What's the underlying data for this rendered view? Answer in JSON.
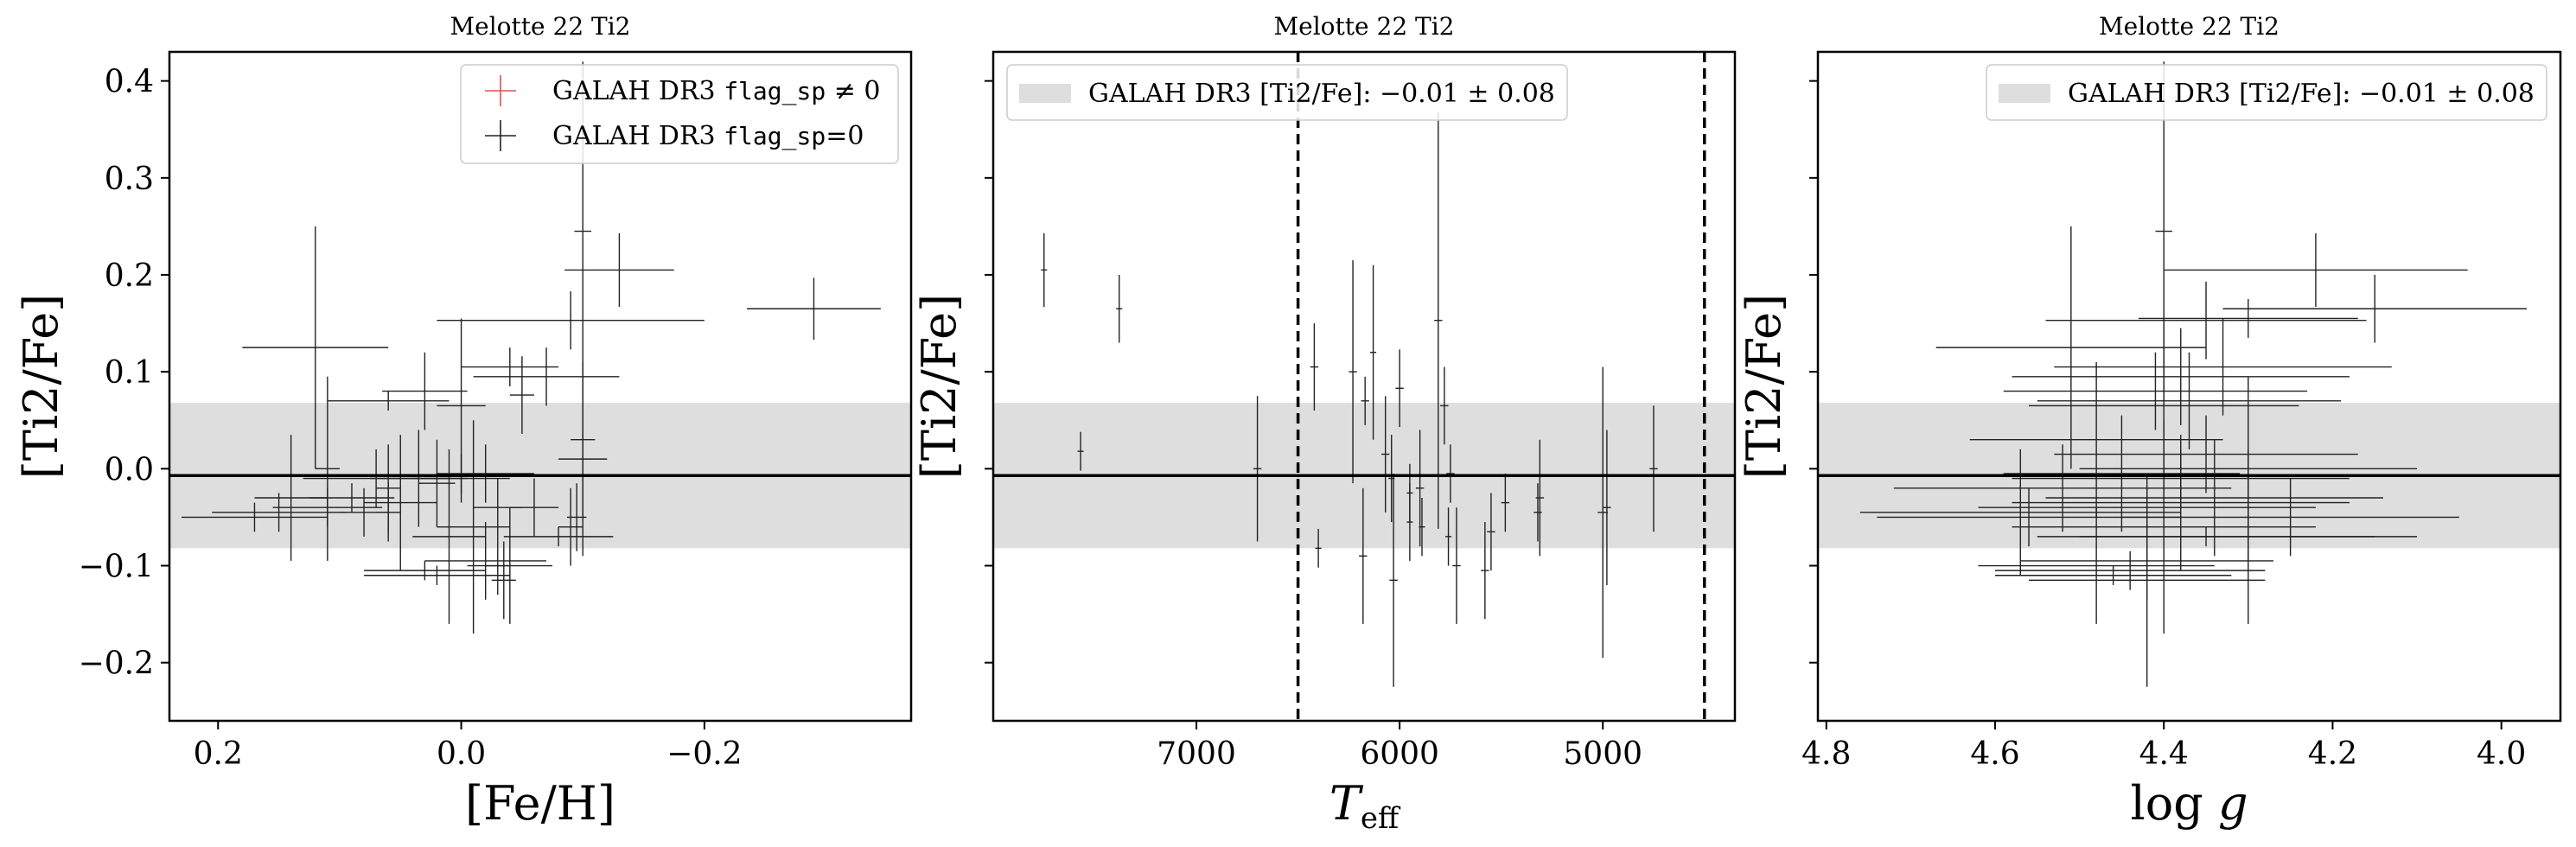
{
  "colors": {
    "band": "#dedede",
    "errorbar": "#222222",
    "flagged": "#e05050",
    "axis": "#000000"
  },
  "legend_text": {
    "flagged_prefix": "GALAH DR3 ",
    "flag_code": "flag_sp",
    "flagged_suffix": " ≠ 0",
    "unflagged_suffix": "=0",
    "band_label": "GALAH DR3 [Ti2/Fe]: −0.01 ± 0.08"
  },
  "chart_data": [
    {
      "type": "scatter",
      "title": "Melotte 22 Ti2",
      "xlabel": "[Fe/H]",
      "ylabel": "[Ti2/Fe]",
      "xlim": [
        0.24,
        -0.37
      ],
      "ylim": [
        -0.26,
        0.43
      ],
      "xticks": [
        0.2,
        0.0,
        -0.2
      ],
      "xtick_labels": [
        "0.2",
        "0.0",
        "−0.2"
      ],
      "yticks": [
        -0.2,
        -0.1,
        0.0,
        0.1,
        0.2,
        0.3,
        0.4
      ],
      "ytick_labels": [
        "−0.2",
        "−0.1",
        "0.0",
        "0.1",
        "0.2",
        "0.3",
        "0.4"
      ],
      "show_yticklabels": true,
      "reference_line": -0.007,
      "band": [
        -0.082,
        0.068
      ],
      "legend_position": "upper right",
      "legend": [
        "GALAH DR3 flag_sp ≠ 0",
        "GALAH DR3 flag_sp=0"
      ],
      "points": [
        {
          "x": -0.13,
          "y": 0.205,
          "xerr": 0.045,
          "yerr": 0.038
        },
        {
          "x": -0.29,
          "y": 0.165,
          "xerr": 0.055,
          "yerr": 0.032
        },
        {
          "x": 0.12,
          "y": 0.125,
          "xerr": 0.06,
          "yerr": 0.125
        },
        {
          "x": -0.09,
          "y": 0.153,
          "xerr": 0.11,
          "yerr": 0.03
        },
        {
          "x": -0.1,
          "y": 0.245,
          "xerr": 0.007,
          "yerr": 0.175
        },
        {
          "x": -0.04,
          "y": 0.105,
          "xerr": 0.04,
          "yerr": 0.02
        },
        {
          "x": -0.07,
          "y": 0.095,
          "xerr": 0.06,
          "yerr": 0.03
        },
        {
          "x": -0.05,
          "y": 0.076,
          "xerr": 0.01,
          "yerr": 0.04
        },
        {
          "x": 0.03,
          "y": 0.08,
          "xerr": 0.035,
          "yerr": 0.04
        },
        {
          "x": 0.06,
          "y": 0.07,
          "xerr": 0.05,
          "yerr": 0.01
        },
        {
          "x": 0.0,
          "y": 0.065,
          "xerr": 0.02,
          "yerr": 0.09
        },
        {
          "x": -0.1,
          "y": 0.03,
          "xerr": 0.01,
          "yerr": 0.08
        },
        {
          "x": 0.11,
          "y": 0.0,
          "xerr": 0.01,
          "yerr": 0.095
        },
        {
          "x": -0.1,
          "y": 0.01,
          "xerr": 0.02,
          "yerr": 0.1
        },
        {
          "x": 0.07,
          "y": -0.01,
          "xerr": 0.06,
          "yerr": 0.03
        },
        {
          "x": 0.06,
          "y": -0.02,
          "xerr": 0.01,
          "yerr": 0.045
        },
        {
          "x": 0.14,
          "y": -0.03,
          "xerr": 0.03,
          "yerr": 0.065
        },
        {
          "x": 0.15,
          "y": -0.045,
          "xerr": 0.055,
          "yerr": 0.02
        },
        {
          "x": 0.17,
          "y": -0.05,
          "xerr": 0.06,
          "yerr": 0.015
        },
        {
          "x": 0.11,
          "y": -0.04,
          "xerr": 0.045,
          "yerr": 0.02
        },
        {
          "x": 0.09,
          "y": -0.03,
          "xerr": 0.035,
          "yerr": 0.015
        },
        {
          "x": 0.08,
          "y": -0.045,
          "xerr": 0.02,
          "yerr": 0.025
        },
        {
          "x": 0.06,
          "y": -0.045,
          "xerr": 0.01,
          "yerr": 0.03
        },
        {
          "x": 0.05,
          "y": -0.035,
          "xerr": 0.03,
          "yerr": 0.07
        },
        {
          "x": 0.035,
          "y": -0.01,
          "xerr": 0.04,
          "yerr": 0.05
        },
        {
          "x": 0.02,
          "y": -0.015,
          "xerr": 0.015,
          "yerr": 0.045
        },
        {
          "x": 0.0,
          "y": -0.01,
          "xerr": 0.04,
          "yerr": 0.025
        },
        {
          "x": -0.02,
          "y": -0.005,
          "xerr": 0.04,
          "yerr": 0.03
        },
        {
          "x": -0.03,
          "y": -0.04,
          "xerr": 0.02,
          "yerr": 0.03
        },
        {
          "x": -0.01,
          "y": -0.06,
          "xerr": 0.03,
          "yerr": 0.11
        },
        {
          "x": -0.04,
          "y": -0.1,
          "xerr": 0.035,
          "yerr": 0.06
        },
        {
          "x": -0.02,
          "y": -0.095,
          "xerr": 0.05,
          "yerr": 0.04
        },
        {
          "x": 0.01,
          "y": -0.07,
          "xerr": 0.03,
          "yerr": 0.09
        },
        {
          "x": -0.06,
          "y": -0.04,
          "xerr": 0.02,
          "yerr": 0.03
        },
        {
          "x": 0.03,
          "y": -0.105,
          "xerr": 0.05,
          "yerr": 0.01
        },
        {
          "x": -0.08,
          "y": -0.07,
          "xerr": 0.045,
          "yerr": 0.01
        },
        {
          "x": -0.09,
          "y": -0.06,
          "xerr": 0.01,
          "yerr": 0.04
        },
        {
          "x": -0.095,
          "y": -0.05,
          "xerr": 0.008,
          "yerr": 0.035
        },
        {
          "x": 0.02,
          "y": -0.11,
          "xerr": 0.06,
          "yerr": 0.01
        },
        {
          "x": -0.035,
          "y": -0.115,
          "xerr": 0.01,
          "yerr": 0.04
        },
        {
          "x": -0.03,
          "y": -0.1,
          "xerr": 0.01,
          "yerr": 0.03
        }
      ]
    },
    {
      "type": "scatter",
      "title": "Melotte 22 Ti2",
      "xlabel": "T_eff",
      "ylabel": "[Ti2/Fe]",
      "xlim": [
        8000,
        4350
      ],
      "ylim": [
        -0.26,
        0.43
      ],
      "xticks": [
        7000,
        6000,
        5000
      ],
      "xtick_labels": [
        "7000",
        "6000",
        "5000"
      ],
      "yticks": [
        -0.2,
        -0.1,
        0.0,
        0.1,
        0.2,
        0.3,
        0.4
      ],
      "show_yticklabels": false,
      "reference_line": -0.007,
      "band": [
        -0.082,
        0.068
      ],
      "vlines": [
        6500,
        4500
      ],
      "legend_position": "upper left",
      "legend": [
        "GALAH DR3 [Ti2/Fe]: −0.01 ± 0.08"
      ],
      "points": [
        {
          "x": 7750,
          "y": 0.205,
          "xerr": 0.06,
          "yerr": 0.038
        },
        {
          "x": 7380,
          "y": 0.165,
          "xerr": 0.06,
          "yerr": 0.035
        },
        {
          "x": 7570,
          "y": 0.018,
          "xerr": 0.06,
          "yerr": 0.02
        },
        {
          "x": 6700,
          "y": 0.0,
          "xerr": 0.08,
          "yerr": 0.075
        },
        {
          "x": 6420,
          "y": 0.105,
          "xerr": 0.08,
          "yerr": 0.045
        },
        {
          "x": 6400,
          "y": -0.082,
          "xerr": 0.06,
          "yerr": 0.02
        },
        {
          "x": 6230,
          "y": 0.1,
          "xerr": 0.08,
          "yerr": 0.115
        },
        {
          "x": 6170,
          "y": 0.07,
          "xerr": 0.08,
          "yerr": 0.025
        },
        {
          "x": 6130,
          "y": 0.12,
          "xerr": 0.06,
          "yerr": 0.09
        },
        {
          "x": 6070,
          "y": 0.015,
          "xerr": 0.08,
          "yerr": 0.06
        },
        {
          "x": 6000,
          "y": 0.083,
          "xerr": 0.08,
          "yerr": 0.04
        },
        {
          "x": 6040,
          "y": -0.01,
          "xerr": 0.06,
          "yerr": 0.045
        },
        {
          "x": 5950,
          "y": -0.025,
          "xerr": 0.06,
          "yerr": 0.03
        },
        {
          "x": 5900,
          "y": -0.02,
          "xerr": 0.08,
          "yerr": 0.06
        },
        {
          "x": 5810,
          "y": 0.153,
          "xerr": 0.08,
          "yerr": 0.215
        },
        {
          "x": 5780,
          "y": 0.065,
          "xerr": 0.08,
          "yerr": 0.04
        },
        {
          "x": 5750,
          "y": -0.005,
          "xerr": 0.08,
          "yerr": 0.03
        },
        {
          "x": 5760,
          "y": -0.07,
          "xerr": 0.06,
          "yerr": 0.03
        },
        {
          "x": 5720,
          "y": -0.1,
          "xerr": 0.08,
          "yerr": 0.06
        },
        {
          "x": 5580,
          "y": -0.105,
          "xerr": 0.08,
          "yerr": 0.05
        },
        {
          "x": 5550,
          "y": -0.065,
          "xerr": 0.08,
          "yerr": 0.04
        },
        {
          "x": 5480,
          "y": -0.035,
          "xerr": 0.08,
          "yerr": 0.03
        },
        {
          "x": 6180,
          "y": -0.09,
          "xerr": 0.08,
          "yerr": 0.07
        },
        {
          "x": 6030,
          "y": -0.115,
          "xerr": 0.08,
          "yerr": 0.11
        },
        {
          "x": 5320,
          "y": -0.045,
          "xerr": 0.08,
          "yerr": 0.03
        },
        {
          "x": 5310,
          "y": -0.03,
          "xerr": 0.08,
          "yerr": 0.06
        },
        {
          "x": 5000,
          "y": -0.045,
          "xerr": 0.1,
          "yerr": 0.15
        },
        {
          "x": 4980,
          "y": -0.04,
          "xerr": 0.08,
          "yerr": 0.08
        },
        {
          "x": 4750,
          "y": 0.0,
          "xerr": 0.08,
          "yerr": 0.065
        },
        {
          "x": 5950,
          "y": -0.055,
          "xerr": 0.06,
          "yerr": 0.04
        },
        {
          "x": 5890,
          "y": -0.06,
          "xerr": 0.06,
          "yerr": 0.03
        }
      ]
    },
    {
      "type": "scatter",
      "title": "Melotte 22 Ti2",
      "xlabel": "log g",
      "ylabel": "[Ti2/Fe]",
      "xlim": [
        4.81,
        3.93
      ],
      "ylim": [
        -0.26,
        0.43
      ],
      "xticks": [
        4.8,
        4.6,
        4.4,
        4.2,
        4.0
      ],
      "xtick_labels": [
        "4.8",
        "4.6",
        "4.4",
        "4.2",
        "4.0"
      ],
      "yticks": [
        -0.2,
        -0.1,
        0.0,
        0.1,
        0.2,
        0.3,
        0.4
      ],
      "show_yticklabels": false,
      "reference_line": -0.007,
      "band": [
        -0.082,
        0.068
      ],
      "legend_position": "upper right",
      "legend": [
        "GALAH DR3 [Ti2/Fe]: −0.01 ± 0.08"
      ],
      "points": [
        {
          "x": 4.22,
          "y": 0.205,
          "xerr": 0.18,
          "yerr": 0.038
        },
        {
          "x": 4.15,
          "y": 0.165,
          "xerr": 0.18,
          "yerr": 0.035
        },
        {
          "x": 4.3,
          "y": 0.155,
          "xerr": 0.13,
          "yerr": 0.02
        },
        {
          "x": 4.35,
          "y": 0.153,
          "xerr": 0.19,
          "yerr": 0.04
        },
        {
          "x": 4.51,
          "y": 0.125,
          "xerr": 0.16,
          "yerr": 0.125
        },
        {
          "x": 4.4,
          "y": 0.245,
          "xerr": 0.01,
          "yerr": 0.175
        },
        {
          "x": 4.33,
          "y": 0.105,
          "xerr": 0.2,
          "yerr": 0.05
        },
        {
          "x": 4.38,
          "y": 0.095,
          "xerr": 0.2,
          "yerr": 0.05
        },
        {
          "x": 4.41,
          "y": 0.08,
          "xerr": 0.18,
          "yerr": 0.04
        },
        {
          "x": 4.37,
          "y": 0.07,
          "xerr": 0.18,
          "yerr": 0.05
        },
        {
          "x": 4.4,
          "y": 0.065,
          "xerr": 0.16,
          "yerr": 0.09
        },
        {
          "x": 4.48,
          "y": 0.03,
          "xerr": 0.15,
          "yerr": 0.08
        },
        {
          "x": 4.35,
          "y": 0.015,
          "xerr": 0.18,
          "yerr": 0.04
        },
        {
          "x": 4.3,
          "y": 0.0,
          "xerr": 0.2,
          "yerr": 0.095
        },
        {
          "x": 4.45,
          "y": -0.005,
          "xerr": 0.14,
          "yerr": 0.06
        },
        {
          "x": 4.38,
          "y": -0.01,
          "xerr": 0.2,
          "yerr": 0.03
        },
        {
          "x": 4.52,
          "y": -0.02,
          "xerr": 0.2,
          "yerr": 0.045
        },
        {
          "x": 4.57,
          "y": -0.045,
          "xerr": 0.19,
          "yerr": 0.065
        },
        {
          "x": 4.56,
          "y": -0.05,
          "xerr": 0.18,
          "yerr": 0.03
        },
        {
          "x": 4.42,
          "y": -0.04,
          "xerr": 0.2,
          "yerr": 0.02
        },
        {
          "x": 4.38,
          "y": -0.035,
          "xerr": 0.2,
          "yerr": 0.07
        },
        {
          "x": 4.34,
          "y": -0.03,
          "xerr": 0.2,
          "yerr": 0.06
        },
        {
          "x": 4.4,
          "y": -0.06,
          "xerr": 0.18,
          "yerr": 0.11
        },
        {
          "x": 4.48,
          "y": -0.1,
          "xerr": 0.14,
          "yerr": 0.06
        },
        {
          "x": 4.42,
          "y": -0.095,
          "xerr": 0.15,
          "yerr": 0.04
        },
        {
          "x": 4.3,
          "y": -0.07,
          "xerr": 0.2,
          "yerr": 0.09
        },
        {
          "x": 4.44,
          "y": -0.105,
          "xerr": 0.16,
          "yerr": 0.02
        },
        {
          "x": 4.35,
          "y": -0.07,
          "xerr": 0.2,
          "yerr": 0.01
        },
        {
          "x": 4.42,
          "y": -0.115,
          "xerr": 0.14,
          "yerr": 0.11
        },
        {
          "x": 4.25,
          "y": -0.05,
          "xerr": 0.2,
          "yerr": 0.04
        },
        {
          "x": 4.46,
          "y": -0.11,
          "xerr": 0.14,
          "yerr": 0.01
        }
      ]
    }
  ]
}
